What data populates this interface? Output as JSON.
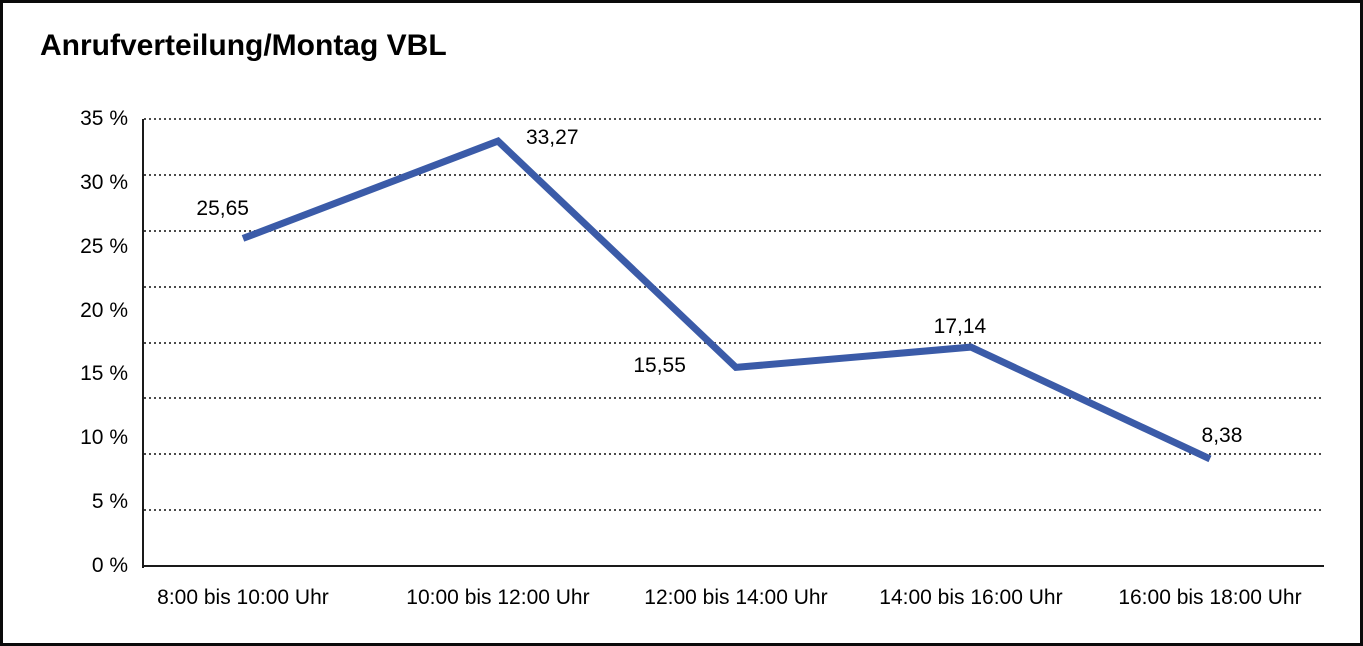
{
  "title": "Anrufverteilung/Montag VBL",
  "chart_data": {
    "type": "line",
    "title": "Anrufverteilung/Montag VBL",
    "categories": [
      "8:00 bis 10:00 Uhr",
      "10:00 bis 12:00 Uhr",
      "12:00 bis 14:00 Uhr",
      "14:00 bis 16:00 Uhr",
      "16:00 bis 18:00 Uhr"
    ],
    "values": [
      25.65,
      33.27,
      15.55,
      17.14,
      8.38
    ],
    "value_labels": [
      "25,65",
      "33,27",
      "15,55",
      "17,14",
      "8,38"
    ],
    "y_tick_labels": [
      "35 %",
      "30 %",
      "25 %",
      "20 %",
      "15 %",
      "10 %",
      "5 %",
      "0 %"
    ],
    "y_tick_values": [
      35,
      30,
      25,
      20,
      15,
      10,
      5,
      0
    ],
    "ylim": [
      0,
      35
    ],
    "xlabel": "",
    "ylabel": "",
    "legend": "none",
    "grid": "dotted-horizontal",
    "gridline_count": 8,
    "line_color": "#3b5ba8",
    "axis_color": "#1a1a1a",
    "text_color": "#000000",
    "background_color": "#ffffff"
  }
}
